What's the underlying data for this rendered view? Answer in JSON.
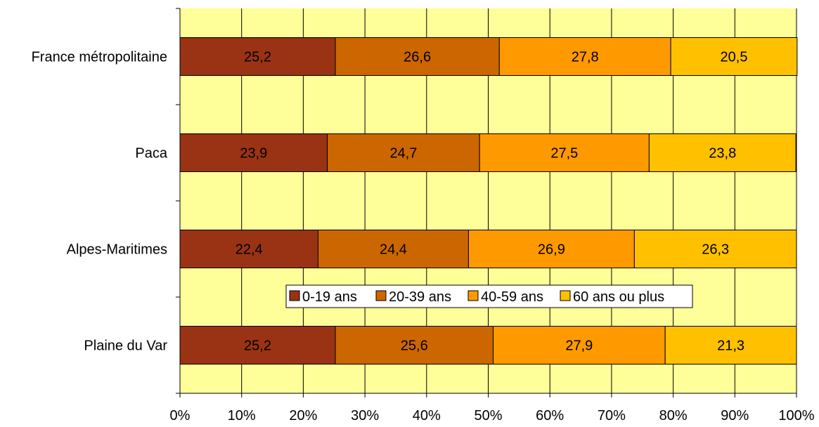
{
  "chart_data": {
    "type": "bar",
    "orientation": "horizontal",
    "stacked": true,
    "percent": true,
    "categories": [
      "France métropolitaine",
      "Paca",
      "Alpes-Maritimes",
      "Plaine du Var"
    ],
    "series": [
      {
        "name": "0-19 ans",
        "color": "#993314",
        "values": [
          25.2,
          23.9,
          22.4,
          25.2
        ],
        "labels": [
          "25,2",
          "23,9",
          "22,4",
          "25,2"
        ]
      },
      {
        "name": "20-39 ans",
        "color": "#CC6600",
        "values": [
          26.6,
          24.7,
          24.4,
          25.6
        ],
        "labels": [
          "26,6",
          "24,7",
          "24,4",
          "25,6"
        ]
      },
      {
        "name": "40-59 ans",
        "color": "#FF9900",
        "values": [
          27.8,
          27.5,
          26.9,
          27.9
        ],
        "labels": [
          "27,8",
          "27,5",
          "26,9",
          "27,9"
        ]
      },
      {
        "name": "60 ans ou plus",
        "color": "#FFC000",
        "values": [
          20.5,
          23.8,
          26.3,
          21.3
        ],
        "labels": [
          "20,5",
          "23,8",
          "26,3",
          "21,3"
        ]
      }
    ],
    "xlim": [
      0,
      100
    ],
    "xticks": [
      "0%",
      "10%",
      "20%",
      "30%",
      "40%",
      "50%",
      "60%",
      "70%",
      "80%",
      "90%",
      "100%"
    ],
    "grid": true,
    "plot_background": "#FFFF99",
    "legend_position": "inside-bottom-center"
  }
}
